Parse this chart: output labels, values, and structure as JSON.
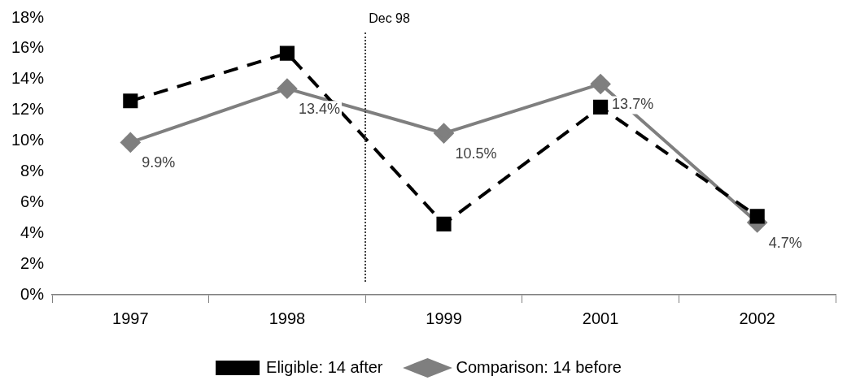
{
  "chart_data": {
    "type": "line",
    "categories": [
      "1997",
      "1998",
      "1999",
      "2001",
      "2002"
    ],
    "series": [
      {
        "name": "Eligible: 14 after",
        "color": "#000000",
        "values": [
          12.6,
          15.7,
          4.6,
          12.2,
          5.1
        ],
        "marker": "square",
        "line_style": "dashed"
      },
      {
        "name": "Comparison: 14 before",
        "color": "#7f7f7f",
        "values": [
          9.9,
          13.4,
          10.5,
          13.7,
          4.7
        ],
        "marker": "diamond",
        "line_style": "solid",
        "value_labels": [
          "9.9%",
          "13.4%",
          "10.5%",
          "13.7%",
          "4.7%"
        ]
      }
    ],
    "ylim": [
      0,
      18
    ],
    "yticks": [
      {
        "value": 0,
        "label": "0%"
      },
      {
        "value": 2,
        "label": "2%"
      },
      {
        "value": 4,
        "label": "4%"
      },
      {
        "value": 6,
        "label": "6%"
      },
      {
        "value": 8,
        "label": "8%"
      },
      {
        "value": 10,
        "label": "10%"
      },
      {
        "value": 12,
        "label": "12%"
      },
      {
        "value": 14,
        "label": "14%"
      },
      {
        "value": 16,
        "label": "16%"
      },
      {
        "value": 18,
        "label": "18%"
      }
    ],
    "annotations": [
      "Dec 98"
    ],
    "grid": false,
    "legend": "bottom"
  }
}
